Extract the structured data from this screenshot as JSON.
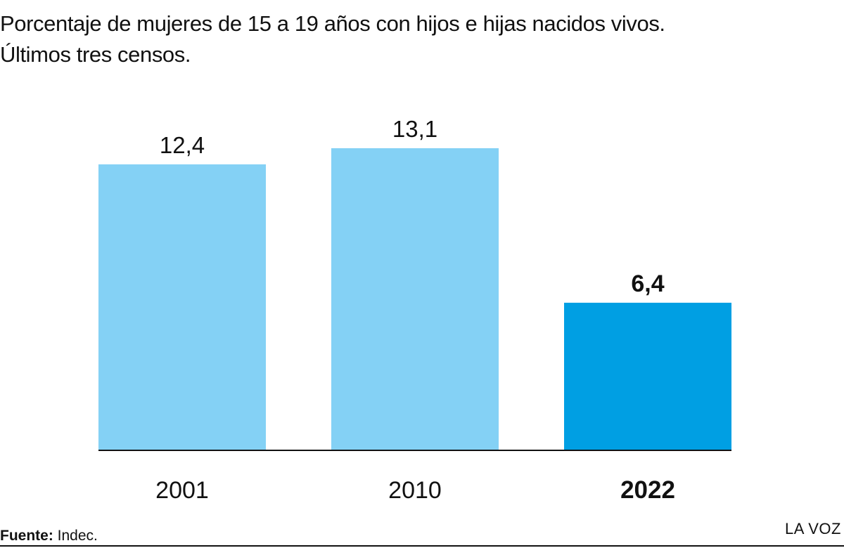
{
  "header": {
    "title_line1": "Porcentaje de mujeres de 15 a 19 años con hijos e hijas nacidos vivos.",
    "title_line2": "Últimos tres censos."
  },
  "chart_data": {
    "type": "bar",
    "categories": [
      "2001",
      "2010",
      "2022"
    ],
    "values": [
      12.4,
      13.1,
      6.4
    ],
    "value_labels": [
      "12,4",
      "13,1",
      "6,4"
    ],
    "highlighted_category": "2022",
    "title": "Porcentaje de mujeres de 15 a 19 años con hijos e hijas nacidos vivos. Últimos tres censos.",
    "xlabel": "",
    "ylabel": "",
    "ylim": [
      0,
      14
    ],
    "grid": false,
    "colors": {
      "default_bar": "#84d1f5",
      "highlight_bar": "#009fe3",
      "baseline": "#111111"
    }
  },
  "footer": {
    "source_label": "Fuente:",
    "source_value": " Indec.",
    "brand": "LA VOZ"
  }
}
